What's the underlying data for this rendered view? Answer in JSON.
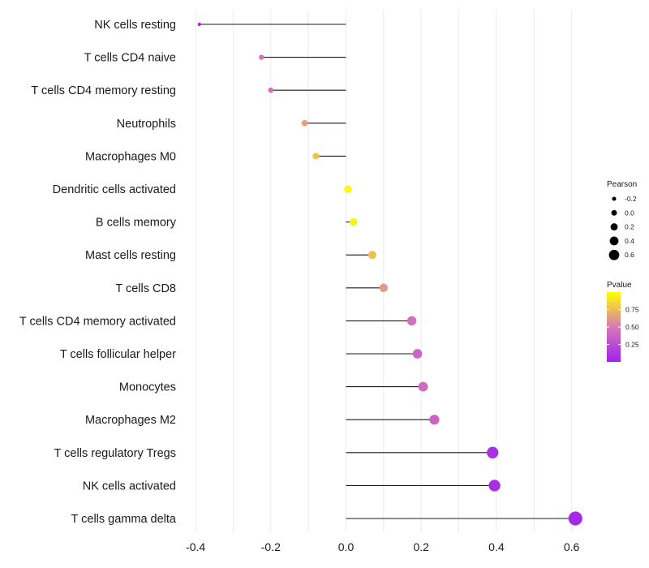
{
  "chart_data": {
    "type": "lollipop",
    "xlabel": "",
    "ylabel": "",
    "xlim": [
      -0.42,
      0.64
    ],
    "x_ticks": [
      -0.4,
      -0.2,
      0.0,
      0.2,
      0.4,
      0.6
    ],
    "x_tick_labels": [
      "-0.4",
      "-0.2",
      "0.0",
      "0.2",
      "0.4",
      "0.6"
    ],
    "grid": true,
    "categories": [
      "NK cells resting",
      "T cells CD4 naive",
      "T cells CD4 memory resting",
      "Neutrophils",
      "Macrophages M0",
      "Dendritic cells activated",
      "B cells memory",
      "Mast cells resting",
      "T cells CD8",
      "T cells CD4 memory activated",
      "T cells follicular helper",
      "Monocytes",
      "Macrophages M2",
      "T cells regulatory  Tregs ",
      "NK cells activated",
      "T cells gamma delta"
    ],
    "pearson": [
      -0.39,
      -0.225,
      -0.2,
      -0.11,
      -0.08,
      0.005,
      0.02,
      0.07,
      0.1,
      0.175,
      0.19,
      0.205,
      0.235,
      0.39,
      0.395,
      0.61
    ],
    "pvalue": [
      0.02,
      0.45,
      0.45,
      0.65,
      0.78,
      0.98,
      0.95,
      0.76,
      0.62,
      0.45,
      0.4,
      0.42,
      0.38,
      0.08,
      0.08,
      0.05
    ],
    "size_legend": {
      "title": "Pearson",
      "values": [
        -0.2,
        0.0,
        0.2,
        0.4,
        0.6
      ],
      "labels": [
        "-0.2",
        "0.0",
        "0.2",
        "0.4",
        "0.6"
      ]
    },
    "color_legend": {
      "title": "Pvalue",
      "range": [
        0.0,
        1.0
      ],
      "ticks": [
        0.25,
        0.5,
        0.75
      ],
      "tick_labels": [
        "0.25",
        "0.50",
        "0.75"
      ],
      "low_color": "#a020f0",
      "mid_color": "#d77ab5",
      "high_color": "#ffff00"
    }
  }
}
